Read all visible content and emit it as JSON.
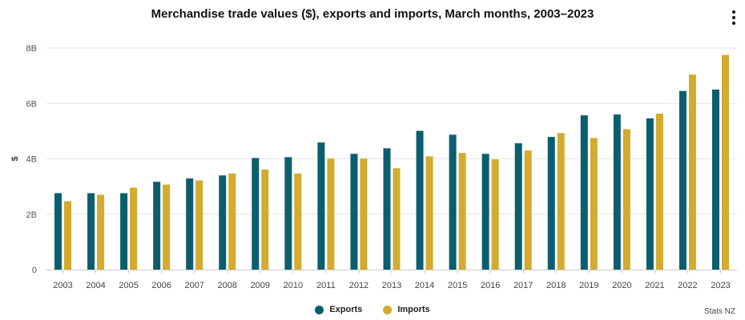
{
  "chart_data": {
    "type": "bar",
    "title": "Merchandise trade values ($), exports and imports, March months, 2003–2023",
    "xlabel": "",
    "ylabel": "$",
    "ylim": [
      0,
      8
    ],
    "yticks": [
      {
        "value": 0,
        "label": "0"
      },
      {
        "value": 2,
        "label": "2B"
      },
      {
        "value": 4,
        "label": "4B"
      },
      {
        "value": 6,
        "label": "6B"
      },
      {
        "value": 8,
        "label": "8B"
      }
    ],
    "categories": [
      "2003",
      "2004",
      "2005",
      "2006",
      "2007",
      "2008",
      "2009",
      "2010",
      "2011",
      "2012",
      "2013",
      "2014",
      "2015",
      "2016",
      "2017",
      "2018",
      "2019",
      "2020",
      "2021",
      "2022",
      "2023"
    ],
    "series": [
      {
        "name": "Exports",
        "color": "#0b5e6e",
        "values": [
          2.76,
          2.76,
          2.76,
          3.17,
          3.29,
          3.4,
          4.03,
          4.06,
          4.59,
          4.18,
          4.38,
          5.01,
          4.87,
          4.18,
          4.56,
          4.79,
          5.57,
          5.6,
          5.46,
          6.45,
          6.5
        ]
      },
      {
        "name": "Imports",
        "color": "#d3ab2e",
        "values": [
          2.47,
          2.7,
          2.96,
          3.07,
          3.22,
          3.47,
          3.61,
          3.47,
          4.01,
          4.01,
          3.66,
          4.09,
          4.21,
          3.98,
          4.3,
          4.93,
          4.75,
          5.07,
          5.63,
          7.04,
          7.75
        ]
      }
    ],
    "legend_position": "bottom-center",
    "grid": true
  },
  "credits": "Stats NZ",
  "menu_label": "Chart context menu"
}
